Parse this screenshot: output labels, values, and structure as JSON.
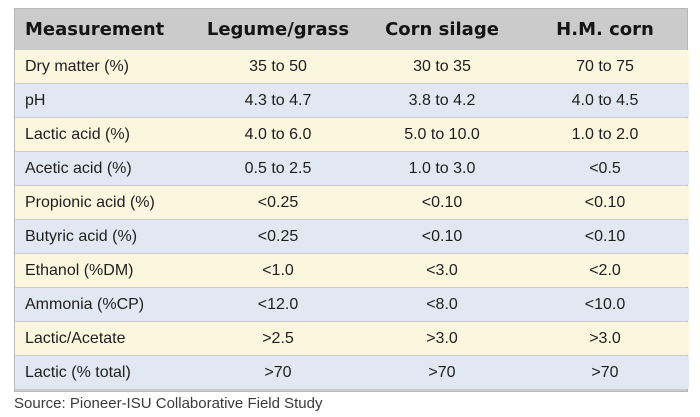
{
  "table": {
    "headers": [
      "Measurement",
      "Legume/grass",
      "Corn silage",
      "H.M. corn"
    ],
    "rows": [
      [
        "Dry matter (%)",
        "35 to 50",
        "30 to 35",
        "70 to 75"
      ],
      [
        "pH",
        "4.3 to 4.7",
        "3.8 to 4.2",
        "4.0 to 4.5"
      ],
      [
        "Lactic acid (%)",
        "4.0 to 6.0",
        "5.0 to 10.0",
        "1.0 to 2.0"
      ],
      [
        "Acetic acid (%)",
        "0.5 to 2.5",
        "1.0 to 3.0",
        "<0.5"
      ],
      [
        "Propionic acid (%)",
        "<0.25",
        "<0.10",
        "<0.10"
      ],
      [
        "Butyric acid (%)",
        "<0.25",
        "<0.10",
        "<0.10"
      ],
      [
        "Ethanol (%DM)",
        "<1.0",
        "<3.0",
        "<2.0"
      ],
      [
        "Ammonia (%CP)",
        "<12.0",
        "<8.0",
        "<10.0"
      ],
      [
        "Lactic/Acetate",
        ">2.5",
        ">3.0",
        ">3.0"
      ],
      [
        "Lactic (% total)",
        ">70",
        ">70",
        ">70"
      ]
    ]
  },
  "source": "Source: Pioneer-ISU Collaborative Field Study",
  "colors": {
    "header_bg": "#cbcbcb",
    "row_cream": "#fdf6df",
    "row_blue": "#e1e8f2"
  }
}
